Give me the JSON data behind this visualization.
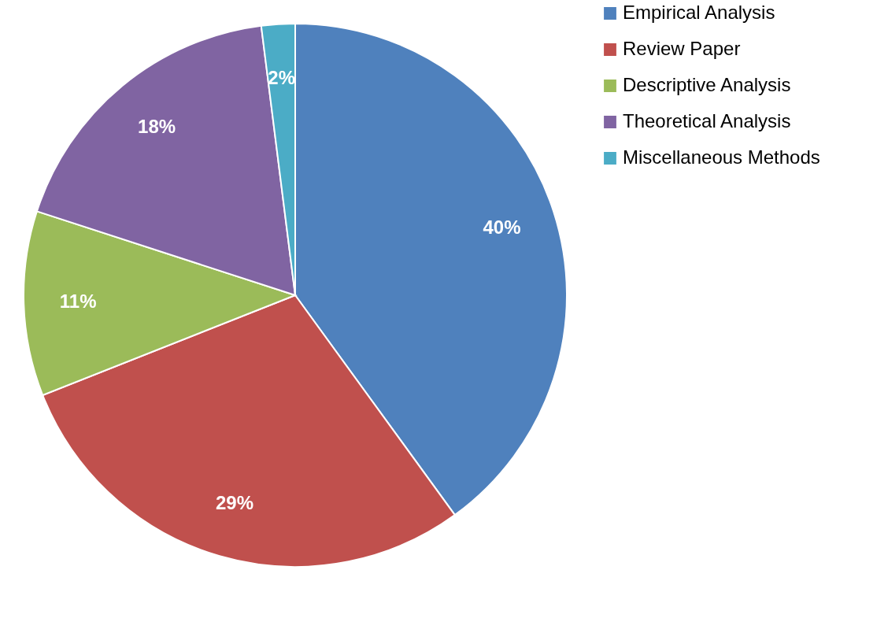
{
  "chart_data": {
    "type": "pie",
    "categories": [
      "Empirical Analysis",
      "Review Paper",
      "Descriptive Analysis",
      "Theoretical Analysis",
      "Miscellaneous Methods"
    ],
    "values": [
      40,
      29,
      11,
      18,
      2
    ],
    "colors": [
      "#4f81bd",
      "#c0504d",
      "#9bbb59",
      "#8064a2",
      "#4bacc6"
    ],
    "value_labels": [
      "40%",
      "29%",
      "11%",
      "18%",
      "2%"
    ],
    "legend": "right"
  }
}
